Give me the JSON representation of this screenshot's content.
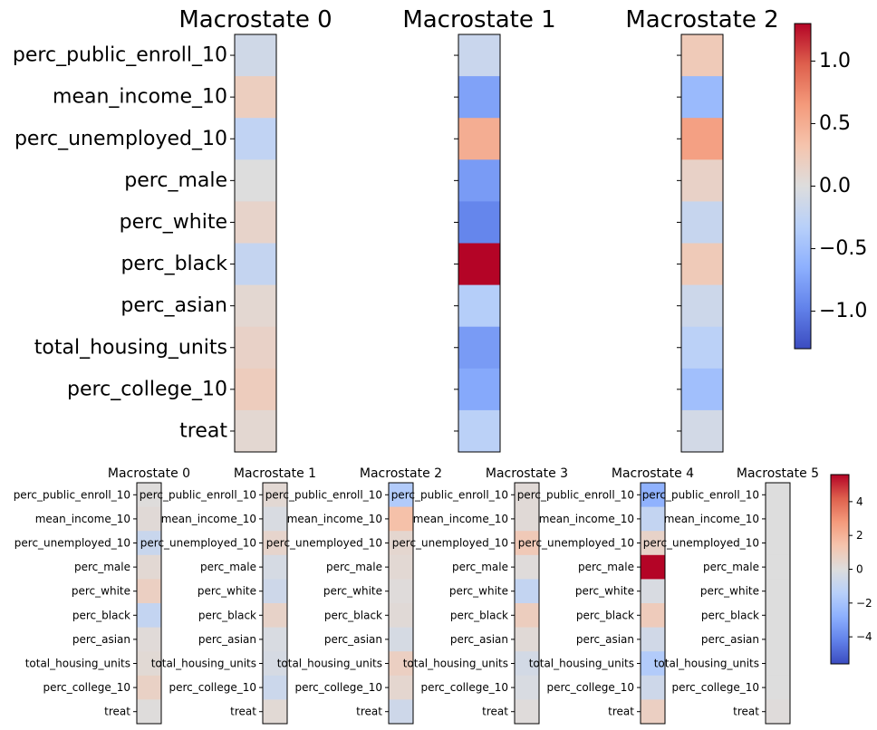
{
  "variables": [
    "perc_public_enroll_10",
    "mean_income_10",
    "perc_unemployed_10",
    "perc_male",
    "perc_white",
    "perc_black",
    "perc_asian",
    "total_housing_units",
    "perc_college_10",
    "treat"
  ],
  "chart_data": [
    {
      "type": "heatmap",
      "panel": "top",
      "colormap": "coolwarm",
      "vmin": -1.3,
      "vmax": 1.3,
      "colorbar_ticks": [
        1.0,
        0.5,
        0.0,
        -0.5,
        -1.0
      ],
      "colorbar_tick_labels": [
        "1.0",
        "0.5",
        "0.0",
        "−0.5",
        "−1.0"
      ],
      "show_ylabels_on_first_only": true,
      "macrostates": [
        {
          "title": "Macrostate 0",
          "values": [
            -0.12,
            0.2,
            -0.25,
            0.0,
            0.13,
            -0.22,
            0.08,
            0.15,
            0.22,
            0.08
          ]
        },
        {
          "title": "Macrostate 1",
          "values": [
            -0.18,
            -0.75,
            0.5,
            -0.8,
            -0.95,
            1.3,
            -0.35,
            -0.8,
            -0.7,
            -0.3
          ]
        },
        {
          "title": "Macrostate 2",
          "values": [
            0.25,
            -0.55,
            0.6,
            0.15,
            -0.2,
            0.25,
            -0.15,
            -0.3,
            -0.5,
            -0.1
          ]
        }
      ]
    },
    {
      "type": "heatmap",
      "panel": "bottom",
      "colormap": "coolwarm",
      "vmin": -5.6,
      "vmax": 5.6,
      "colorbar_ticks": [
        4,
        2,
        0,
        -2,
        -4
      ],
      "colorbar_tick_labels": [
        "4",
        "2",
        "0",
        "−2",
        "−4"
      ],
      "macrostates": [
        {
          "title": "Macrostate 0",
          "values": [
            0.05,
            0.2,
            -0.8,
            0.3,
            0.8,
            -1.0,
            0.15,
            0.25,
            0.7,
            0.05
          ]
        },
        {
          "title": "Macrostate 1",
          "values": [
            0.3,
            -0.2,
            0.5,
            -0.3,
            -0.6,
            0.6,
            -0.2,
            -0.3,
            -0.7,
            0.25
          ]
        },
        {
          "title": "Macrostate 2",
          "values": [
            -1.6,
            1.5,
            0.4,
            0.3,
            0.1,
            0.2,
            -0.3,
            0.8,
            0.4,
            -0.6
          ]
        },
        {
          "title": "Macrostate 3",
          "values": [
            0.2,
            0.2,
            1.1,
            0.1,
            -1.0,
            0.9,
            0.2,
            -0.4,
            -0.2,
            0.1
          ]
        },
        {
          "title": "Macrostate 4",
          "values": [
            -2.7,
            -1.0,
            0.6,
            5.6,
            -0.2,
            1.0,
            -0.5,
            -1.6,
            -0.6,
            0.8
          ]
        },
        {
          "title": "Macrostate 5",
          "values": [
            0.0,
            0.0,
            0.0,
            0.0,
            0.0,
            0.0,
            0.0,
            0.0,
            0.0,
            0.1
          ]
        }
      ]
    }
  ]
}
